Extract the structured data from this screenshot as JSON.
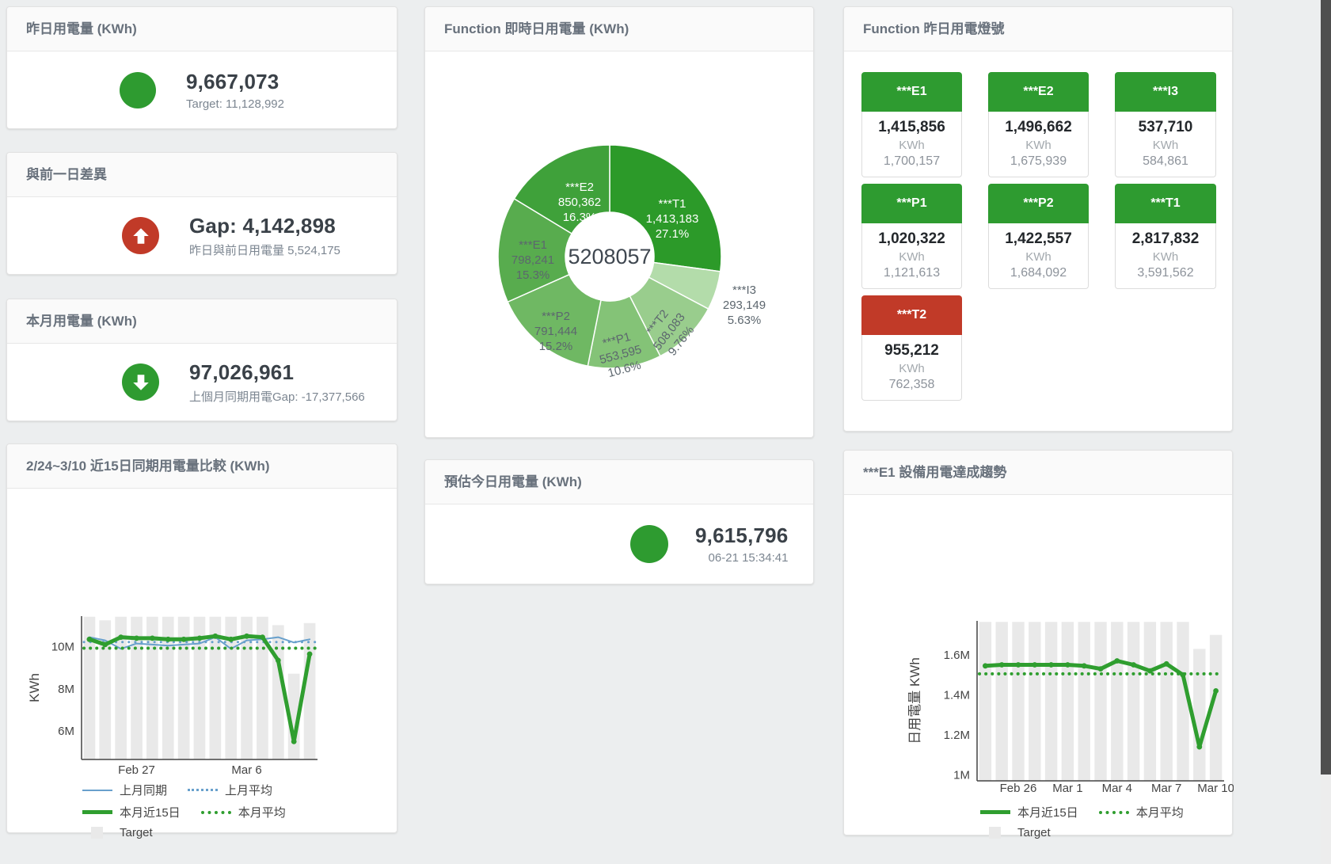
{
  "colors": {
    "green": "#2e9b30",
    "red": "#c13a28",
    "blue_line": "#68a0cc",
    "green_line": "#2f9e2f",
    "bar_gray": "#e9e9e9",
    "axis": "#444444"
  },
  "kpi": {
    "yesterday": {
      "title": "昨日用電量 (KWh)",
      "value": "9,667,073",
      "subtitle": "Target: 11,128,992",
      "icon": "circle",
      "icon_color": "#2e9b30"
    },
    "day_gap": {
      "title": "與前一日差異",
      "value": "Gap: 4,142,898",
      "subtitle": "昨日與前日用電量 5,524,175",
      "icon": "arrow-up",
      "icon_color": "#c13a28"
    },
    "month": {
      "title": "本月用電量 (KWh)",
      "value": "97,026,961",
      "subtitle": "上個月同期用電Gap: -17,377,566",
      "icon": "arrow-down",
      "icon_color": "#2e9b30"
    },
    "estimate": {
      "title": "預估今日用電量 (KWh)",
      "value": "9,615,796",
      "subtitle": "06-21 15:34:41",
      "icon": "circle",
      "icon_color": "#2e9b30"
    }
  },
  "donut": {
    "title": "Function 即時日用電量 (KWh)",
    "center_total": "5208057",
    "slices": [
      {
        "name": "***T1",
        "value": 1413183,
        "value_label": "1,413,183",
        "pct_label": "27.1%",
        "color": "#2c9a29",
        "label_color": "#ffffff"
      },
      {
        "name": "***I3",
        "value": 293149,
        "value_label": "293,149",
        "pct_label": "5.63%",
        "color": "#b3dcaa",
        "label_color": "#5c666e"
      },
      {
        "name": "***T2",
        "value": 508083,
        "value_label": "508,083",
        "pct_label": "9.76%",
        "color": "#99cd8d",
        "label_color": "#5c666e"
      },
      {
        "name": "***P1",
        "value": 553595,
        "value_label": "553,595",
        "pct_label": "10.6%",
        "color": "#84c377",
        "label_color": "#5c666e"
      },
      {
        "name": "***P2",
        "value": 791444,
        "value_label": "791,444",
        "pct_label": "15.2%",
        "color": "#6fb863",
        "label_color": "#5c666e"
      },
      {
        "name": "***E1",
        "value": 798241,
        "value_label": "798,241",
        "pct_label": "15.3%",
        "color": "#58ac4e",
        "label_color": "#5c666e"
      },
      {
        "name": "***E2",
        "value": 850362,
        "value_label": "850,362",
        "pct_label": "16.3%",
        "color": "#3fa13a",
        "label_color": "#ffffff"
      }
    ]
  },
  "lights": {
    "title": "Function 昨日用電燈號",
    "unit": "KWh",
    "tiles": [
      {
        "name": "***E1",
        "value": "1,415,856",
        "target": "1,700,157",
        "status": "green"
      },
      {
        "name": "***E2",
        "value": "1,496,662",
        "target": "1,675,939",
        "status": "green"
      },
      {
        "name": "***I3",
        "value": "537,710",
        "target": "584,861",
        "status": "green"
      },
      {
        "name": "***P1",
        "value": "1,020,322",
        "target": "1,121,613",
        "status": "green"
      },
      {
        "name": "***P2",
        "value": "1,422,557",
        "target": "1,684,092",
        "status": "green"
      },
      {
        "name": "***T1",
        "value": "2,817,832",
        "target": "3,591,562",
        "status": "green"
      },
      {
        "name": "***T2",
        "value": "955,212",
        "target": "762,358",
        "status": "red"
      }
    ]
  },
  "compare_chart": {
    "title": "2/24~3/10 近15日同期用電量比較 (KWh)",
    "type": "line",
    "ylabel": "KWh",
    "unit": "M KWh",
    "ylim": [
      4.65,
      11.45
    ],
    "yticks": [
      {
        "label": "6M",
        "value": 6
      },
      {
        "label": "8M",
        "value": 8
      },
      {
        "label": "10M",
        "value": 10
      }
    ],
    "xticks": [
      {
        "label": "Feb 27",
        "index": 3
      },
      {
        "label": "Mar 6",
        "index": 10
      }
    ],
    "target_bars": {
      "name": "Target",
      "values": [
        11.42,
        11.25,
        11.42,
        11.42,
        11.42,
        11.42,
        11.42,
        11.42,
        11.42,
        11.42,
        11.42,
        11.42,
        11.02,
        8.72,
        11.12
      ]
    },
    "series": [
      {
        "name": "上月同期",
        "dash": "solid",
        "width": 2,
        "color": "#68a0cc",
        "values": [
          10.45,
          10.3,
          9.9,
          10.15,
          10.1,
          10.05,
          10.1,
          10.15,
          10.45,
          9.9,
          10.3,
          10.35,
          10.45,
          10.2,
          10.35
        ]
      },
      {
        "name": "上月平均",
        "dash": "dot",
        "width": 3,
        "color": "#68a0cc",
        "constant": 10.22
      },
      {
        "name": "本月近15日",
        "dash": "solid",
        "width": 5,
        "color": "#2f9e2f",
        "markers": true,
        "values": [
          10.35,
          10.1,
          10.45,
          10.4,
          10.4,
          10.35,
          10.35,
          10.4,
          10.5,
          10.35,
          10.5,
          10.45,
          9.35,
          5.5,
          9.65
        ]
      },
      {
        "name": "本月平均",
        "dash": "dot",
        "width": 4,
        "color": "#2f9e2f",
        "constant": 9.93
      }
    ],
    "legend_rows": [
      [
        "上月同期",
        "上月平均"
      ],
      [
        "本月近15日",
        "本月平均"
      ],
      [
        "Target"
      ]
    ]
  },
  "trend_chart": {
    "title": "***E1 設備用電達成趨勢",
    "type": "line",
    "ylabel": "日用電量 KWh",
    "ylim": [
      0.97,
      1.77
    ],
    "yticks": [
      {
        "label": "1M",
        "value": 1
      },
      {
        "label": "1.2M",
        "value": 1.2
      },
      {
        "label": "1.4M",
        "value": 1.4
      },
      {
        "label": "1.6M",
        "value": 1.6
      }
    ],
    "xticks": [
      {
        "label": "Feb 26",
        "index": 2
      },
      {
        "label": "Mar 1",
        "index": 5
      },
      {
        "label": "Mar 4",
        "index": 8
      },
      {
        "label": "Mar 7",
        "index": 11
      },
      {
        "label": "Mar 10",
        "index": 14
      }
    ],
    "target_bars": {
      "name": "Target",
      "values": [
        1.765,
        1.765,
        1.765,
        1.765,
        1.765,
        1.765,
        1.765,
        1.765,
        1.765,
        1.765,
        1.765,
        1.765,
        1.765,
        1.63,
        1.7
      ]
    },
    "series": [
      {
        "name": "本月近15日",
        "dash": "solid",
        "width": 5,
        "color": "#2f9e2f",
        "markers": true,
        "values": [
          1.545,
          1.55,
          1.55,
          1.55,
          1.55,
          1.55,
          1.545,
          1.53,
          1.57,
          1.55,
          1.52,
          1.555,
          1.5,
          1.14,
          1.42
        ]
      },
      {
        "name": "本月平均",
        "dash": "dot",
        "width": 4,
        "color": "#2f9e2f",
        "constant": 1.505
      }
    ],
    "legend_rows": [
      [
        "本月近15日",
        "本月平均"
      ],
      [
        "Target"
      ]
    ]
  }
}
